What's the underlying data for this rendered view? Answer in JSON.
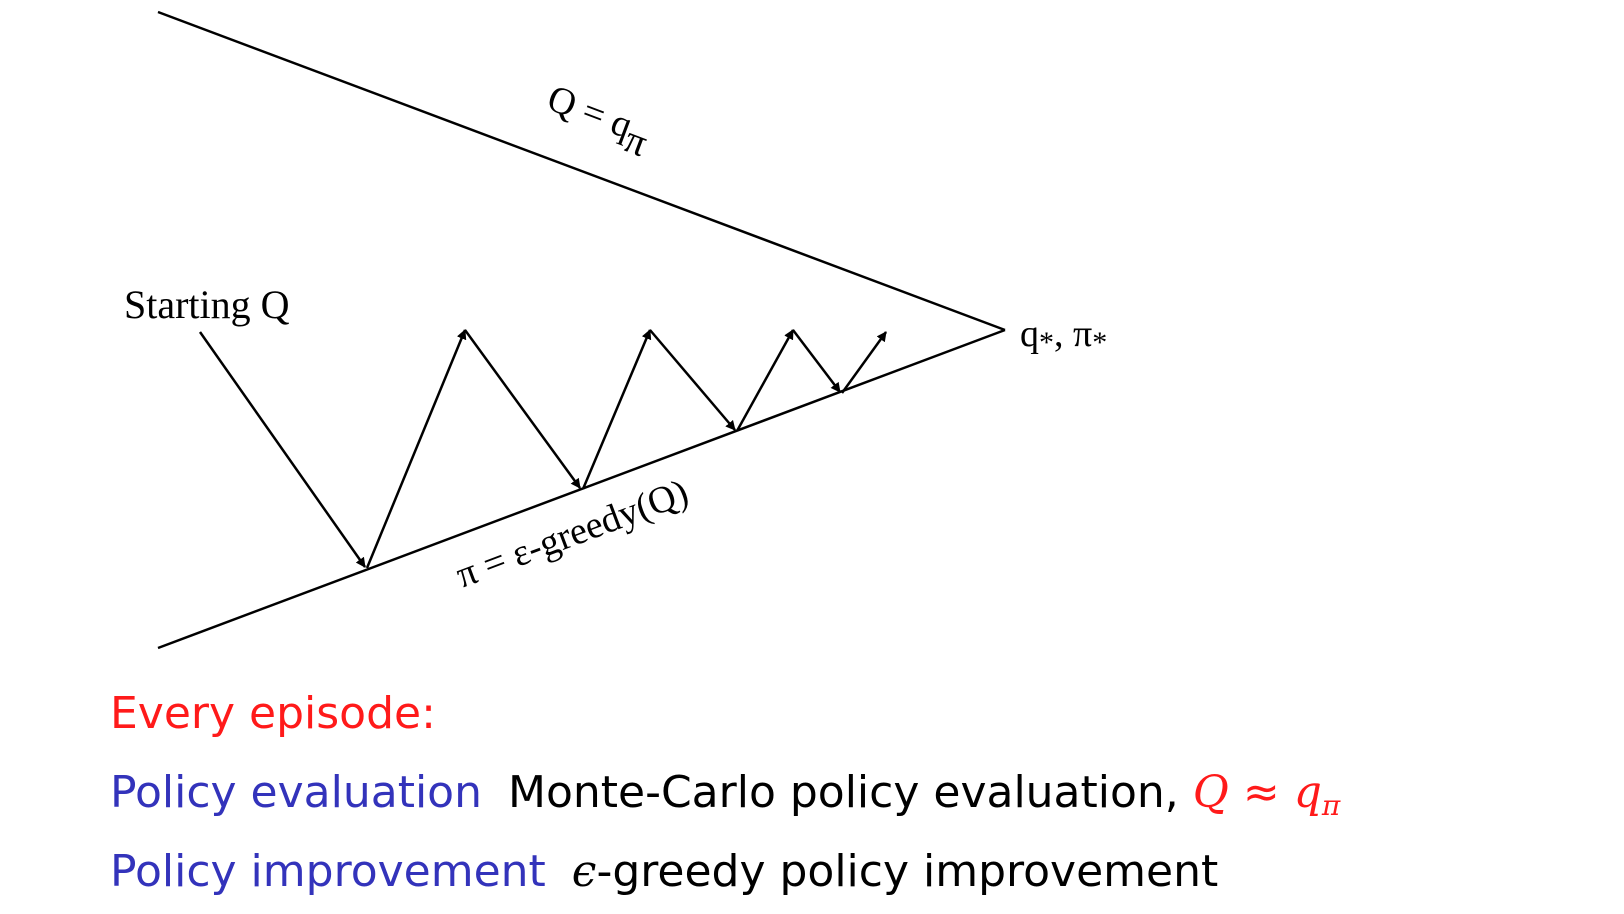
{
  "diagram": {
    "upper_line_label": "Q = q",
    "upper_line_label_sub": "π",
    "lower_line_label": "π = ε-greedy(Q)",
    "start_label": "Starting Q",
    "convergence_label": "q",
    "convergence_label_sub1": "*",
    "convergence_label_sep": ", π",
    "convergence_label_sub2": "*"
  },
  "text": {
    "every_episode": "Every episode:",
    "evaluation_term": "Policy evaluation",
    "evaluation_desc": "Monte-Carlo policy evaluation, ",
    "evaluation_math_q": "Q",
    "evaluation_math_approx": " ≈ ",
    "evaluation_math_q_small": "q",
    "evaluation_math_sub": "π",
    "improvement_term": "Policy improvement",
    "improvement_epsilon": "ϵ",
    "improvement_desc": "-greedy policy improvement"
  },
  "colors": {
    "red": "#ff1a1a",
    "blue": "#3333bb",
    "black": "#000000"
  }
}
